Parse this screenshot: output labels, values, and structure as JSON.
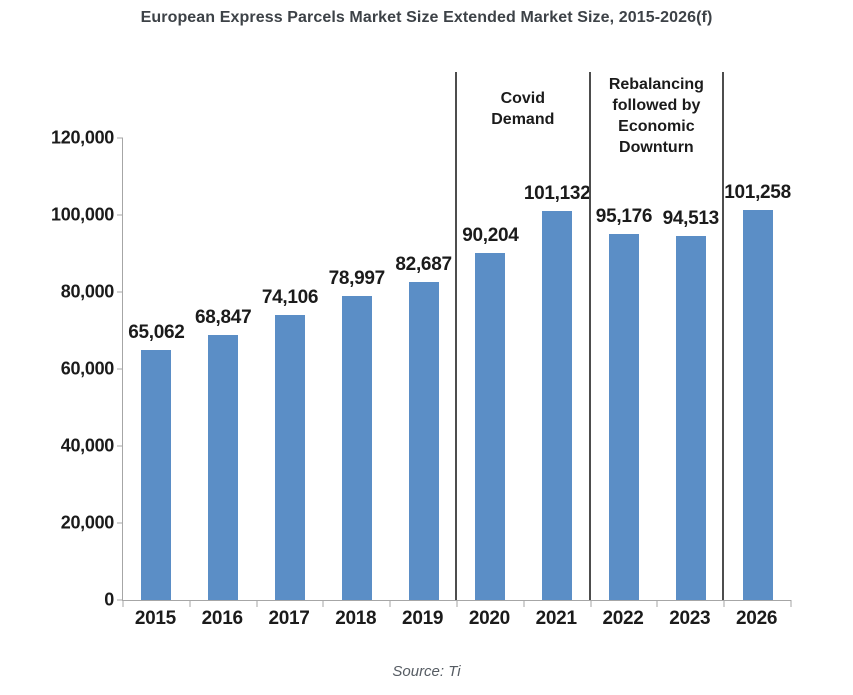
{
  "page": {
    "background": "#ffffff"
  },
  "chart_data": {
    "type": "bar",
    "title": "European Express Parcels Market Size Extended Market Size, 2015-2026(f)",
    "source": "Source: Ti",
    "categories": [
      "2015",
      "2016",
      "2017",
      "2018",
      "2019",
      "2020",
      "2021",
      "2022",
      "2023",
      "2026"
    ],
    "values": [
      65062,
      68847,
      74106,
      78997,
      82687,
      90204,
      101132,
      95176,
      94513,
      101258
    ],
    "data_labels": [
      "65,062",
      "68,847",
      "74,106",
      "78,997",
      "82,687",
      "90,204",
      "101,132",
      "95,176",
      "94,513",
      "101,258"
    ],
    "xlabel": "",
    "ylabel": "",
    "ylim": [
      0,
      120000
    ],
    "ytick_step": 20000,
    "ytick_labels": [
      "0",
      "20,000",
      "40,000",
      "60,000",
      "80,000",
      "100,000",
      "120,000"
    ],
    "grid": false,
    "legend": "none",
    "bar_color": "#5b8ec6",
    "divider_color": "#4d4d4d",
    "axis_color": "#a6a6a6",
    "text_color": "#1b1b1b",
    "title_color": "#3d4247",
    "dividers": [
      5,
      7,
      9
    ],
    "annotations": [
      {
        "text": "Covid\nDemand",
        "segment": [
          5,
          7
        ]
      },
      {
        "text": "Rebalancing\nfollowed by\nEconomic\nDownturn",
        "segment": [
          7,
          9
        ]
      }
    ]
  }
}
